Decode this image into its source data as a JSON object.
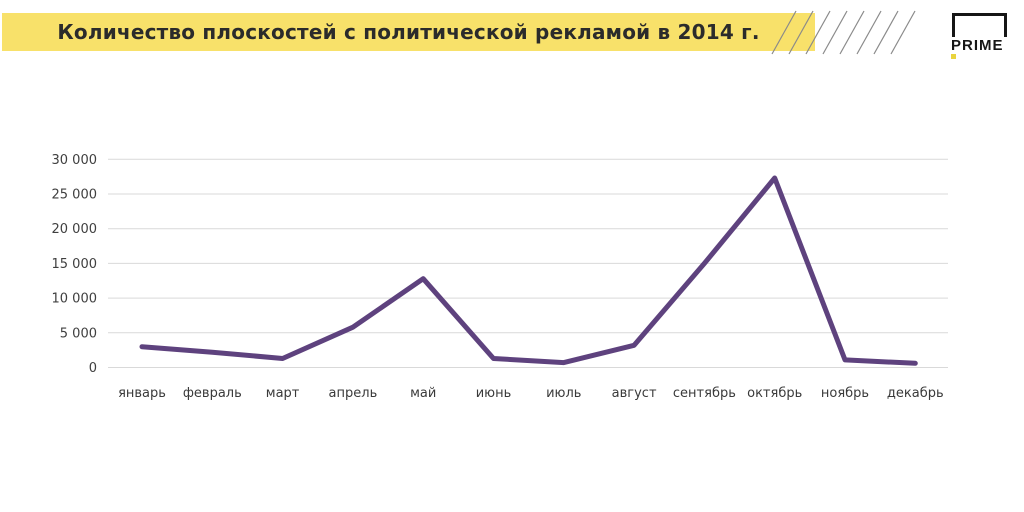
{
  "header": {
    "title": "Количество плоскостей с политической рекламой в 2014 г.",
    "brand": "PRIME"
  },
  "colors": {
    "highlight_yellow": "#f8e16a",
    "line_purple": "#5e427e",
    "gridline_gray": "#d9d9d9",
    "title_text": "#2b2b2b",
    "axis_text": "#3f3f3f",
    "hatch_gray": "#8a8a8a",
    "logo_dot_yellow": "#e9d43d"
  },
  "chart_data": {
    "type": "line",
    "title": "Количество плоскостей с политической рекламой в 2014 г.",
    "categories": [
      "январь",
      "февраль",
      "март",
      "апрель",
      "май",
      "июнь",
      "июль",
      "август",
      "сентябрь",
      "октябрь",
      "ноябрь",
      "декабрь"
    ],
    "values": [
      3000,
      2200,
      1300,
      5800,
      12800,
      1300,
      700,
      3200,
      15000,
      27300,
      1100,
      600
    ],
    "xlabel": "",
    "ylabel": "",
    "ylim": [
      0,
      30000
    ],
    "ytick_values": [
      0,
      5000,
      10000,
      15000,
      20000,
      25000,
      30000
    ],
    "ytick_labels": [
      "0",
      "5 000",
      "10 000",
      "15 000",
      "20 000",
      "25 000",
      "30 000"
    ],
    "grid": true,
    "legend": "none",
    "line_color": "#5e427e",
    "line_width": 5
  }
}
